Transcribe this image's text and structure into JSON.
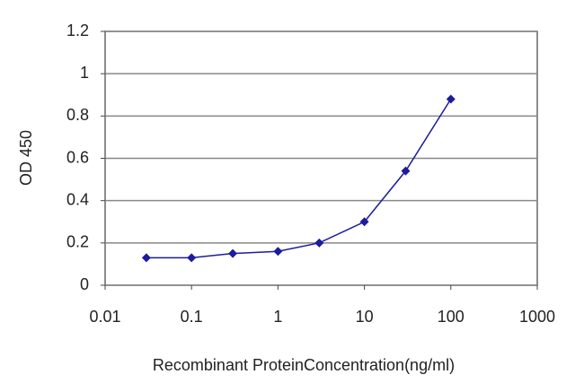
{
  "chart_data": {
    "type": "line",
    "x_label": "Recombinant ProteinConcentration(ng/ml)",
    "y_label": "OD 450",
    "x": [
      0.03,
      0.1,
      0.3,
      1,
      3,
      10,
      30,
      100
    ],
    "series": [
      {
        "color": "#1c1c9c",
        "values": [
          0.13,
          0.13,
          0.15,
          0.16,
          0.2,
          0.3,
          0.54,
          0.88
        ]
      }
    ],
    "xlog": true,
    "xlim": [
      0.01,
      1000
    ],
    "xticks": [
      0.01,
      0.1,
      1,
      10,
      100,
      1000
    ],
    "ylim": [
      0,
      1.2
    ],
    "yticks": [
      0,
      0.2,
      0.4,
      0.6,
      0.8,
      1,
      1.2
    ],
    "grid": true
  }
}
